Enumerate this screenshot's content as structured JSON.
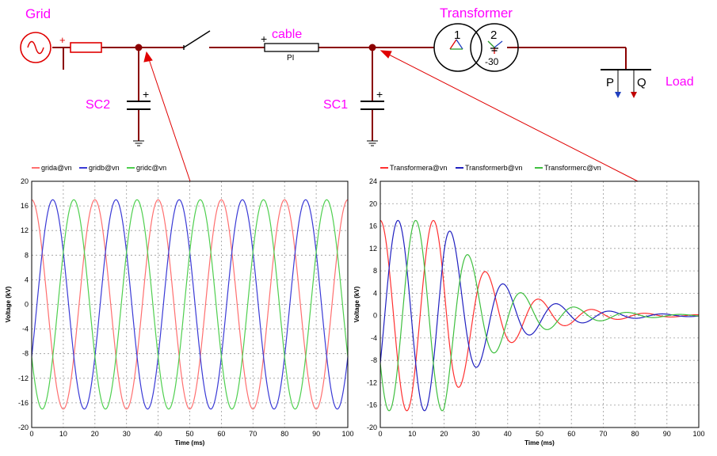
{
  "diagram": {
    "labels": {
      "grid": "Grid",
      "cable": "cable",
      "cable_type": "PI",
      "transformer": "Transformer",
      "winding1": "1",
      "winding2": "2",
      "phase_shift": "-30",
      "load": "Load",
      "load_p": "P",
      "load_q": "Q",
      "sc2": "SC2",
      "sc1": "SC1",
      "plus": "+"
    },
    "colors": {
      "wire": "#8b0000",
      "label": "#ff00ff",
      "arrow": "#e00000",
      "source_red": "#e00000",
      "p_arrow": "#1f3fbf",
      "q_arrow": "#c00000"
    }
  },
  "chart_data": [
    {
      "type": "line",
      "title": "",
      "xlabel": "Time (ms)",
      "ylabel": "Voltage (kV)",
      "xlim": [
        0,
        100
      ],
      "ylim": [
        -20,
        20
      ],
      "xticks": [
        "0",
        "10",
        "20",
        "30",
        "40",
        "50",
        "60",
        "70",
        "80",
        "90",
        "100"
      ],
      "yticks": [
        "20",
        "16",
        "12",
        "8",
        "4",
        "0",
        "-4",
        "-8",
        "-12",
        "-16",
        "-20"
      ],
      "grid": true,
      "legend_position": "top-left",
      "signal": {
        "amplitude_kV": 17,
        "frequency_Hz": 50,
        "phase_deg": [
          90,
          -30,
          -150
        ],
        "damped": false
      },
      "series": [
        {
          "name": "grida@vn",
          "color": "#ff6f6f"
        },
        {
          "name": "gridb@vn",
          "color": "#3a3ad6"
        },
        {
          "name": "gridc@vn",
          "color": "#4fcf4f"
        }
      ]
    },
    {
      "type": "line",
      "title": "",
      "xlabel": "Time (ms)",
      "ylabel": "Voltage (kV)",
      "xlim": [
        0,
        100
      ],
      "ylim": [
        -20,
        24
      ],
      "xticks": [
        "0",
        "10",
        "20",
        "30",
        "40",
        "50",
        "60",
        "70",
        "80",
        "90",
        "100"
      ],
      "yticks": [
        "24",
        "20",
        "16",
        "12",
        "8",
        "4",
        "0",
        "-4",
        "-8",
        "-12",
        "-16",
        "-20"
      ],
      "grid": true,
      "legend_position": "top-left",
      "signal": {
        "amplitude_kV": 17,
        "frequency_Hz": 60,
        "phase_deg": [
          90,
          -30,
          -150
        ],
        "damped": true,
        "damping_start_ms": 20,
        "time_constant_ms": 17
      },
      "series": [
        {
          "name": "Transformera@vn",
          "color": "#ff3030"
        },
        {
          "name": "Transformerb@vn",
          "color": "#2020c0"
        },
        {
          "name": "Transformerc@vn",
          "color": "#3fbf3f"
        }
      ]
    }
  ]
}
